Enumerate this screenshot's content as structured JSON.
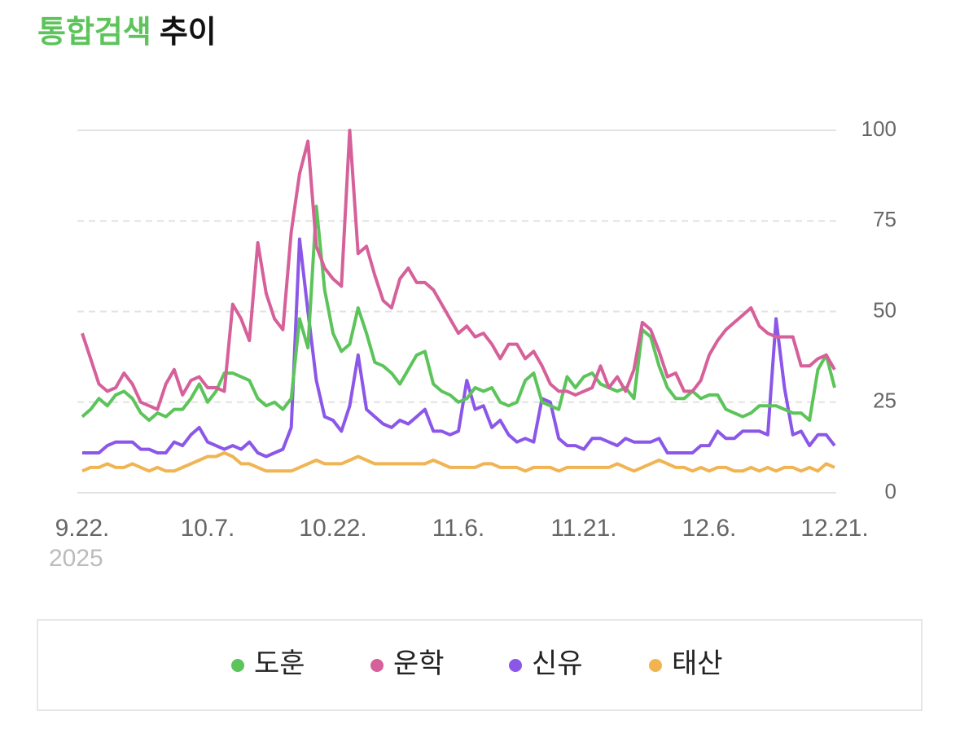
{
  "chart_data": {
    "type": "line",
    "title": {
      "highlight": "통합검색",
      "rest": "추이"
    },
    "x_sublabel": "2025",
    "categories": [
      "9.22.",
      null,
      null,
      null,
      null,
      null,
      null,
      null,
      null,
      null,
      null,
      null,
      null,
      null,
      null,
      "10.7.",
      null,
      null,
      null,
      null,
      null,
      null,
      null,
      null,
      null,
      null,
      null,
      null,
      null,
      null,
      "10.22.",
      null,
      null,
      null,
      null,
      null,
      null,
      null,
      null,
      null,
      null,
      null,
      null,
      null,
      null,
      "11.6.",
      null,
      null,
      null,
      null,
      null,
      null,
      null,
      null,
      null,
      null,
      null,
      null,
      null,
      null,
      "11.21.",
      null,
      null,
      null,
      null,
      null,
      null,
      null,
      null,
      null,
      null,
      null,
      null,
      null,
      null,
      "12.6.",
      null,
      null,
      null,
      null,
      null,
      null,
      null,
      null,
      null,
      null,
      null,
      null,
      null,
      null,
      "12.21."
    ],
    "series": [
      {
        "name": "도훈",
        "color": "#5cc45a",
        "values": [
          21,
          23,
          26,
          24,
          27,
          28,
          26,
          22,
          20,
          22,
          21,
          23,
          23,
          26,
          30,
          25,
          28,
          33,
          33,
          32,
          31,
          26,
          24,
          25,
          23,
          26,
          48,
          40,
          79,
          56,
          44,
          39,
          41,
          51,
          44,
          36,
          35,
          33,
          30,
          34,
          38,
          39,
          30,
          28,
          27,
          25,
          26,
          29,
          28,
          29,
          25,
          24,
          25,
          31,
          33,
          25,
          24,
          23,
          32,
          29,
          32,
          33,
          30,
          29,
          28,
          29,
          26,
          45,
          43,
          35,
          29,
          26,
          26,
          28,
          26,
          27,
          27,
          23,
          22,
          21,
          22,
          24,
          24,
          24,
          23,
          22,
          22,
          20,
          34,
          38,
          29
        ]
      },
      {
        "name": "운학",
        "color": "#d6609a",
        "values": [
          44,
          37,
          30,
          28,
          29,
          33,
          30,
          25,
          24,
          23,
          30,
          34,
          27,
          31,
          32,
          29,
          29,
          28,
          52,
          48,
          42,
          69,
          55,
          48,
          45,
          72,
          88,
          97,
          68,
          62,
          59,
          57,
          100,
          66,
          68,
          60,
          53,
          51,
          59,
          62,
          58,
          58,
          56,
          52,
          48,
          44,
          46,
          43,
          44,
          41,
          37,
          41,
          41,
          37,
          39,
          35,
          30,
          28,
          28,
          27,
          28,
          29,
          35,
          29,
          32,
          28,
          34,
          47,
          45,
          39,
          32,
          33,
          28,
          28,
          31,
          38,
          42,
          45,
          47,
          49,
          51,
          46,
          44,
          43,
          43,
          43,
          35,
          35,
          37,
          38,
          34
        ]
      },
      {
        "name": "신유",
        "color": "#8b57e8",
        "values": [
          11,
          11,
          11,
          13,
          14,
          14,
          14,
          12,
          12,
          11,
          11,
          14,
          13,
          16,
          18,
          14,
          13,
          12,
          13,
          12,
          14,
          11,
          10,
          11,
          12,
          18,
          70,
          50,
          31,
          21,
          20,
          17,
          24,
          38,
          23,
          21,
          19,
          18,
          20,
          19,
          21,
          23,
          17,
          17,
          16,
          17,
          31,
          23,
          24,
          18,
          20,
          16,
          14,
          15,
          14,
          26,
          25,
          15,
          13,
          13,
          12,
          15,
          15,
          14,
          13,
          15,
          14,
          14,
          14,
          15,
          11,
          11,
          11,
          11,
          13,
          13,
          17,
          15,
          15,
          17,
          17,
          17,
          16,
          48,
          29,
          16,
          17,
          13,
          16,
          16,
          13
        ]
      },
      {
        "name": "태산",
        "color": "#f0b452",
        "values": [
          6,
          7,
          7,
          8,
          7,
          7,
          8,
          7,
          6,
          7,
          6,
          6,
          7,
          8,
          9,
          10,
          10,
          11,
          10,
          8,
          8,
          7,
          6,
          6,
          6,
          6,
          7,
          8,
          9,
          8,
          8,
          8,
          9,
          10,
          9,
          8,
          8,
          8,
          8,
          8,
          8,
          8,
          9,
          8,
          7,
          7,
          7,
          7,
          8,
          8,
          7,
          7,
          7,
          6,
          7,
          7,
          7,
          6,
          7,
          7,
          7,
          7,
          7,
          7,
          8,
          7,
          6,
          7,
          8,
          9,
          8,
          7,
          7,
          6,
          7,
          6,
          7,
          7,
          6,
          6,
          7,
          6,
          7,
          6,
          7,
          7,
          6,
          7,
          6,
          8,
          7
        ]
      }
    ],
    "ylim": [
      0,
      100
    ],
    "yticks": [
      0,
      25,
      50,
      75,
      100
    ],
    "grid": true
  }
}
